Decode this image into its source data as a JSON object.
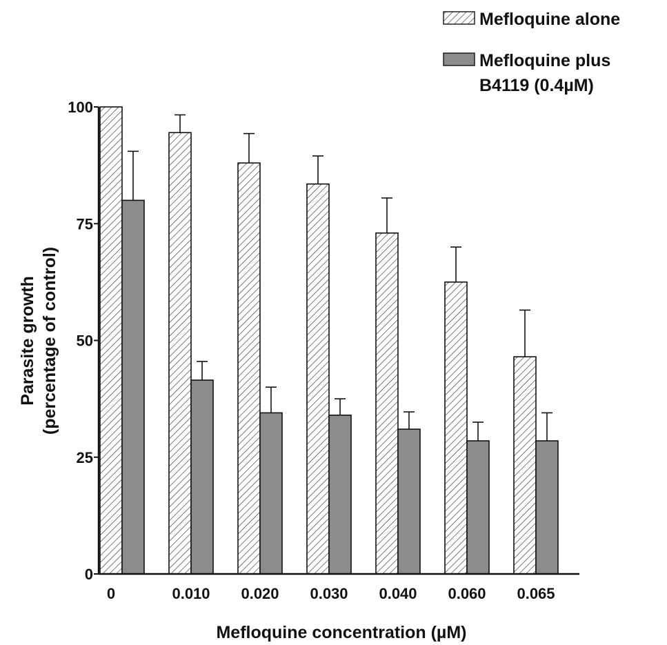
{
  "chart_data": {
    "type": "bar",
    "categories": [
      "0",
      "0.010",
      "0.020",
      "0.030",
      "0.040",
      "0.060",
      "0.065"
    ],
    "series": [
      {
        "name": "Mefloquine alone",
        "values": [
          100,
          94.5,
          88,
          83.5,
          73,
          62.5,
          46.5
        ],
        "error": [
          0,
          3.8,
          6.3,
          6,
          7.5,
          7.5,
          10
        ],
        "fill": "hatch"
      },
      {
        "name": "Mefloquine plus B4119 (0.4µM)",
        "name_lines": [
          "Mefloquine plus",
          "B4119 (0.4µM)"
        ],
        "values": [
          80,
          41.5,
          34.5,
          34,
          31,
          28.5,
          28.5
        ],
        "error": [
          10.5,
          4,
          5.5,
          3.5,
          3.7,
          4,
          6
        ],
        "fill": "solid"
      }
    ],
    "xlabel": "Mefloquine concentration (µM)",
    "ylabel_lines": [
      "Parasite growth",
      "(percentage of control)"
    ],
    "yticks": [
      0,
      25,
      50,
      75,
      100
    ],
    "ylim": [
      0,
      100
    ],
    "legend_position": "top-right",
    "grid": false,
    "colors": {
      "solid": "#8c8c8c",
      "hatch_bg": "#ffffff",
      "hatch_line": "#333333",
      "axis": "#111111"
    }
  }
}
